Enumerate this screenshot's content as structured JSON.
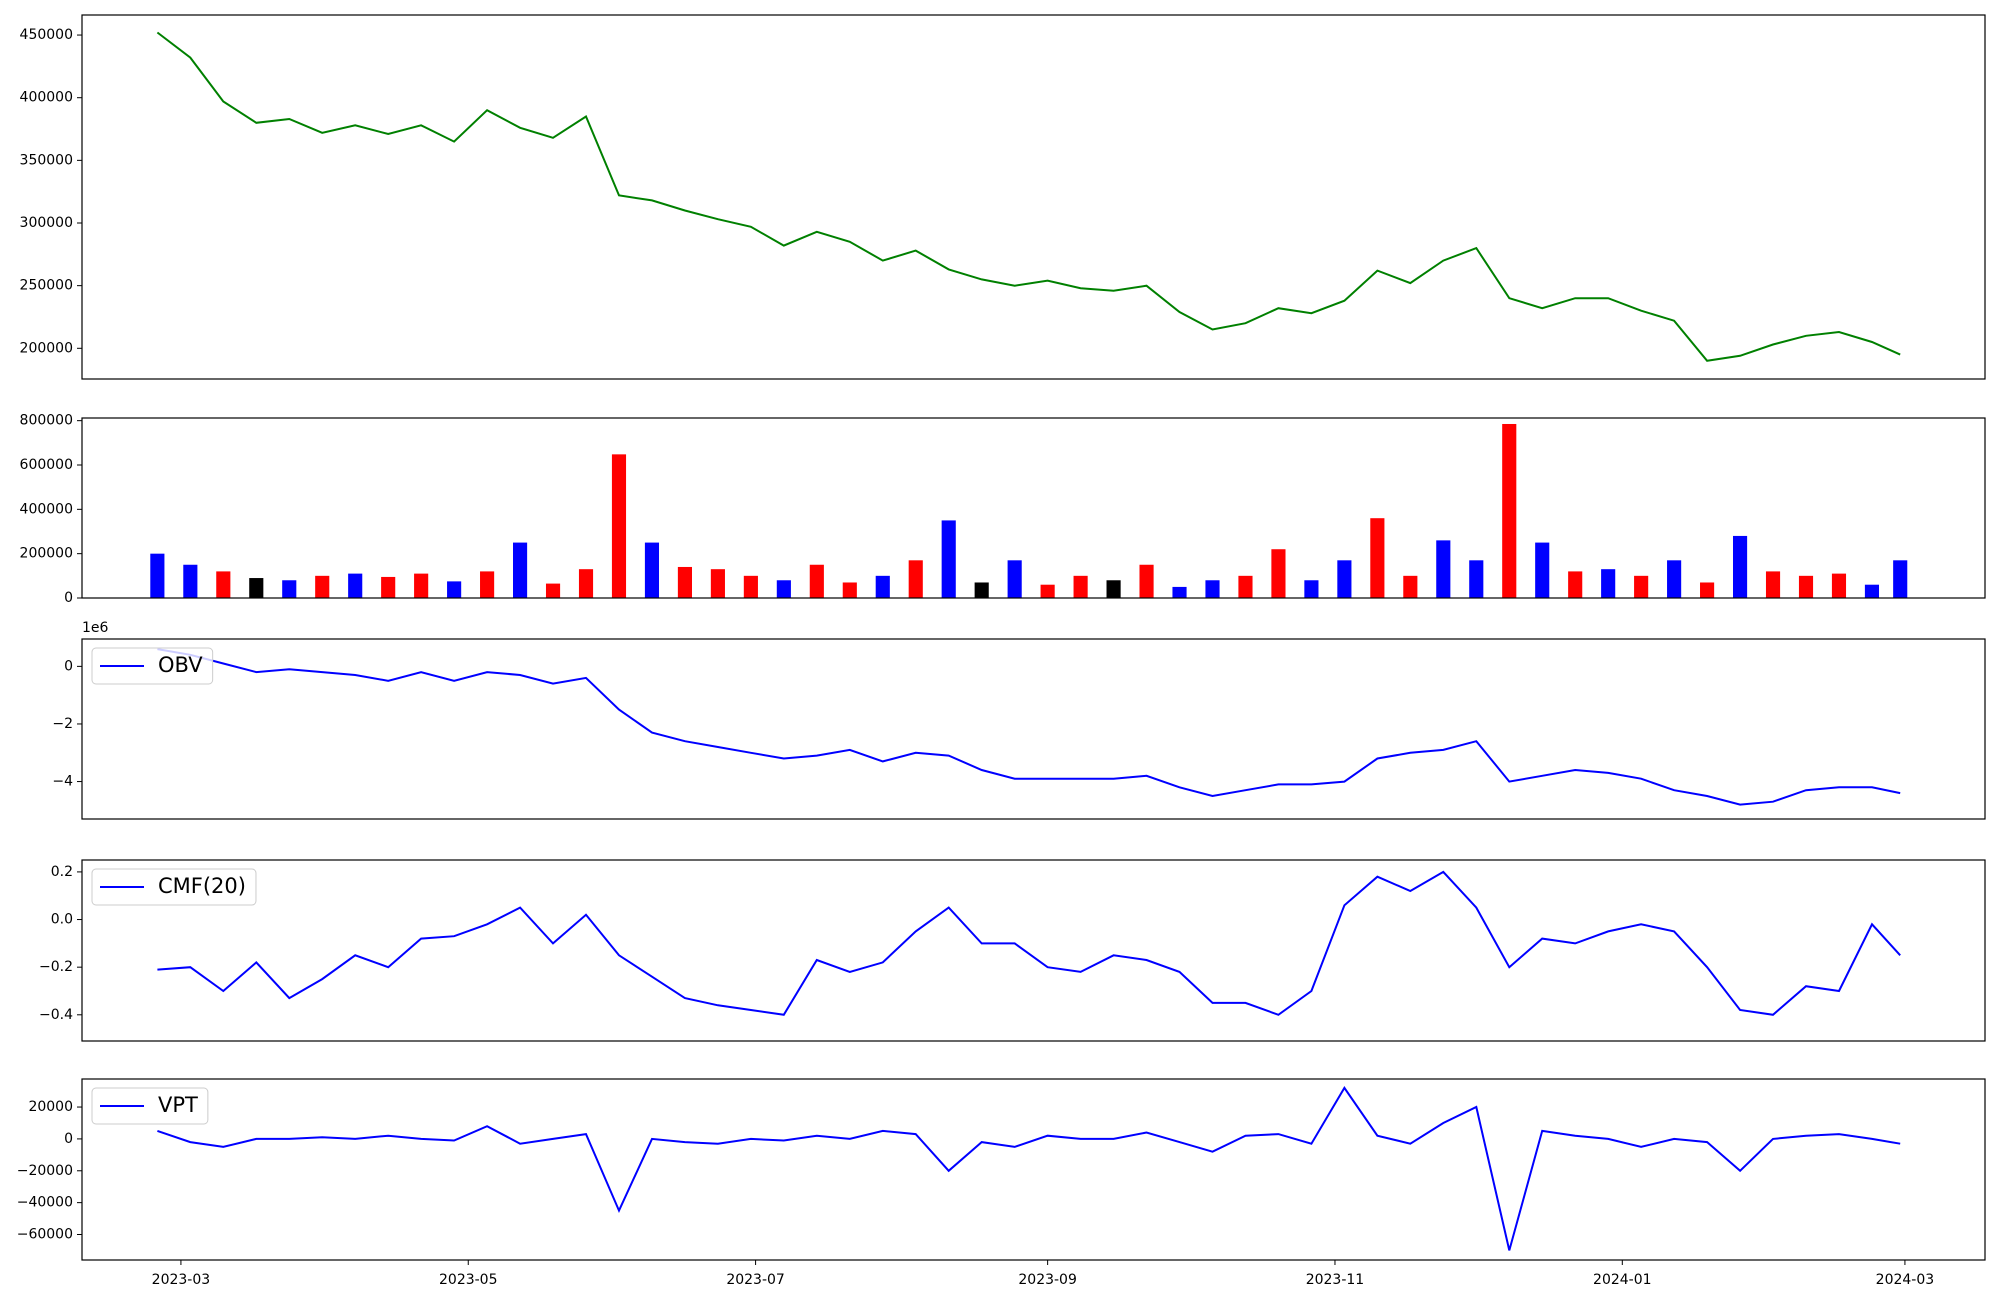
{
  "chart_data": [
    {
      "type": "line",
      "ylim": [
        175500,
        466000
      ],
      "yticks": [
        200000,
        250000,
        300000,
        350000,
        400000,
        450000
      ],
      "xlim": [
        "2023-02-08",
        "2024-03-18"
      ],
      "x": [
        "2023-02-24",
        "2023-03-03",
        "2023-03-10",
        "2023-03-17",
        "2023-03-24",
        "2023-03-31",
        "2023-04-07",
        "2023-04-14",
        "2023-04-21",
        "2023-04-28",
        "2023-05-05",
        "2023-05-12",
        "2023-05-19",
        "2023-05-26",
        "2023-06-02",
        "2023-06-09",
        "2023-06-16",
        "2023-06-23",
        "2023-06-30",
        "2023-07-07",
        "2023-07-14",
        "2023-07-21",
        "2023-07-28",
        "2023-08-04",
        "2023-08-11",
        "2023-08-18",
        "2023-08-25",
        "2023-09-01",
        "2023-09-08",
        "2023-09-15",
        "2023-09-22",
        "2023-09-29",
        "2023-10-06",
        "2023-10-13",
        "2023-10-20",
        "2023-10-27",
        "2023-11-03",
        "2023-11-10",
        "2023-11-17",
        "2023-11-24",
        "2023-12-01",
        "2023-12-08",
        "2023-12-15",
        "2023-12-22",
        "2023-12-29",
        "2024-01-05",
        "2024-01-12",
        "2024-01-19",
        "2024-01-26",
        "2024-02-02",
        "2024-02-09",
        "2024-02-16",
        "2024-02-23",
        "2024-02-29"
      ],
      "series": [
        {
          "color": "#008000",
          "values": [
            452000,
            432000,
            397000,
            380000,
            383000,
            372000,
            378000,
            371000,
            378000,
            365000,
            390000,
            376000,
            368000,
            385000,
            322000,
            318000,
            310000,
            303000,
            297000,
            282000,
            293000,
            285000,
            270000,
            278000,
            263000,
            255000,
            250000,
            254000,
            248000,
            246000,
            250000,
            229000,
            215000,
            220000,
            232000,
            228000,
            238000,
            262000,
            252000,
            270000,
            280000,
            240000,
            232000,
            240000,
            240000,
            230000,
            222000,
            190000,
            194000,
            203000,
            210000,
            213000,
            205000,
            195000
          ]
        }
      ]
    },
    {
      "type": "bar",
      "ylim": [
        0,
        812000
      ],
      "yticks": [
        0,
        200000,
        400000,
        600000,
        800000
      ],
      "xlim": [
        "2023-02-08",
        "2024-03-18"
      ],
      "x": [
        "2023-02-24",
        "2023-03-03",
        "2023-03-10",
        "2023-03-17",
        "2023-03-24",
        "2023-03-31",
        "2023-04-07",
        "2023-04-14",
        "2023-04-21",
        "2023-04-28",
        "2023-05-05",
        "2023-05-12",
        "2023-05-19",
        "2023-05-26",
        "2023-06-02",
        "2023-06-09",
        "2023-06-16",
        "2023-06-23",
        "2023-06-30",
        "2023-07-07",
        "2023-07-14",
        "2023-07-21",
        "2023-07-28",
        "2023-08-04",
        "2023-08-11",
        "2023-08-18",
        "2023-08-25",
        "2023-09-01",
        "2023-09-08",
        "2023-09-15",
        "2023-09-22",
        "2023-09-29",
        "2023-10-06",
        "2023-10-13",
        "2023-10-20",
        "2023-10-27",
        "2023-11-03",
        "2023-11-10",
        "2023-11-17",
        "2023-11-24",
        "2023-12-01",
        "2023-12-08",
        "2023-12-15",
        "2023-12-22",
        "2023-12-29",
        "2024-01-05",
        "2024-01-12",
        "2024-01-19",
        "2024-01-26",
        "2024-02-02",
        "2024-02-09",
        "2024-02-16",
        "2024-02-23",
        "2024-02-29"
      ],
      "series": [
        {
          "values": [
            200000,
            150000,
            120000,
            90000,
            80000,
            100000,
            110000,
            95000,
            110000,
            75000,
            120000,
            250000,
            65000,
            130000,
            648000,
            250000,
            140000,
            130000,
            100000,
            80000,
            150000,
            70000,
            100000,
            170000,
            350000,
            70000,
            170000,
            60000,
            100000,
            80000,
            150000,
            50000,
            80000,
            100000,
            220000,
            80000,
            170000,
            360000,
            100000,
            260000,
            170000,
            785000,
            250000,
            120000,
            130000,
            100000,
            170000,
            70000,
            280000,
            120000,
            100000,
            110000,
            60000,
            170000
          ],
          "colors": [
            "blue",
            "blue",
            "red",
            "black",
            "blue",
            "red",
            "blue",
            "red",
            "red",
            "blue",
            "red",
            "blue",
            "red",
            "red",
            "red",
            "blue",
            "red",
            "red",
            "red",
            "blue",
            "red",
            "red",
            "blue",
            "red",
            "blue",
            "black",
            "blue",
            "red",
            "red",
            "black",
            "red",
            "blue",
            "blue",
            "red",
            "red",
            "blue",
            "blue",
            "red",
            "red",
            "blue",
            "blue",
            "red",
            "blue",
            "red",
            "blue",
            "red",
            "blue",
            "red",
            "blue",
            "red",
            "red",
            "red",
            "blue",
            "blue"
          ]
        }
      ]
    },
    {
      "type": "line",
      "offset_label": "1e6",
      "legend": "upper left",
      "ylim": [
        -5.3,
        0.95
      ],
      "yticks": [
        {
          "value": -4,
          "label": "−4"
        },
        {
          "value": -2,
          "label": "−2"
        },
        0
      ],
      "xlim": [
        "2023-02-08",
        "2024-03-18"
      ],
      "x": [
        "2023-02-24",
        "2023-03-03",
        "2023-03-10",
        "2023-03-17",
        "2023-03-24",
        "2023-03-31",
        "2023-04-07",
        "2023-04-14",
        "2023-04-21",
        "2023-04-28",
        "2023-05-05",
        "2023-05-12",
        "2023-05-19",
        "2023-05-26",
        "2023-06-02",
        "2023-06-09",
        "2023-06-16",
        "2023-06-23",
        "2023-06-30",
        "2023-07-07",
        "2023-07-14",
        "2023-07-21",
        "2023-07-28",
        "2023-08-04",
        "2023-08-11",
        "2023-08-18",
        "2023-08-25",
        "2023-09-01",
        "2023-09-08",
        "2023-09-15",
        "2023-09-22",
        "2023-09-29",
        "2023-10-06",
        "2023-10-13",
        "2023-10-20",
        "2023-10-27",
        "2023-11-03",
        "2023-11-10",
        "2023-11-17",
        "2023-11-24",
        "2023-12-01",
        "2023-12-08",
        "2023-12-15",
        "2023-12-22",
        "2023-12-29",
        "2024-01-05",
        "2024-01-12",
        "2024-01-19",
        "2024-01-26",
        "2024-02-02",
        "2024-02-09",
        "2024-02-16",
        "2024-02-23",
        "2024-02-29"
      ],
      "series": [
        {
          "name": "OBV",
          "color": "#0000ff",
          "values": [
            0.6,
            0.4,
            0.1,
            -0.2,
            -0.1,
            -0.2,
            -0.3,
            -0.5,
            -0.2,
            -0.5,
            -0.2,
            -0.3,
            -0.6,
            -0.4,
            -1.5,
            -2.3,
            -2.6,
            -2.8,
            -3.0,
            -3.2,
            -3.1,
            -2.9,
            -3.3,
            -3.0,
            -3.1,
            -3.6,
            -3.9,
            -3.9,
            -3.9,
            -3.9,
            -3.8,
            -4.2,
            -4.5,
            -4.3,
            -4.1,
            -4.1,
            -4.0,
            -3.2,
            -3.0,
            -2.9,
            -2.6,
            -4.0,
            -3.8,
            -3.6,
            -3.7,
            -3.9,
            -4.3,
            -4.5,
            -4.8,
            -4.7,
            -4.3,
            -4.2,
            -4.2,
            -4.4
          ]
        }
      ]
    },
    {
      "type": "line",
      "legend": "upper left",
      "ylim": [
        -0.51,
        0.25
      ],
      "yticks": [
        {
          "value": -0.4,
          "label": "−0.4"
        },
        {
          "value": -0.2,
          "label": "−0.2"
        },
        {
          "value": 0,
          "label": "0.0"
        },
        0.2
      ],
      "xlim": [
        "2023-02-08",
        "2024-03-18"
      ],
      "x": [
        "2023-02-24",
        "2023-03-03",
        "2023-03-10",
        "2023-03-17",
        "2023-03-24",
        "2023-03-31",
        "2023-04-07",
        "2023-04-14",
        "2023-04-21",
        "2023-04-28",
        "2023-05-05",
        "2023-05-12",
        "2023-05-19",
        "2023-05-26",
        "2023-06-02",
        "2023-06-09",
        "2023-06-16",
        "2023-06-23",
        "2023-06-30",
        "2023-07-07",
        "2023-07-14",
        "2023-07-21",
        "2023-07-28",
        "2023-08-04",
        "2023-08-11",
        "2023-08-18",
        "2023-08-25",
        "2023-09-01",
        "2023-09-08",
        "2023-09-15",
        "2023-09-22",
        "2023-09-29",
        "2023-10-06",
        "2023-10-13",
        "2023-10-20",
        "2023-10-27",
        "2023-11-03",
        "2023-11-10",
        "2023-11-17",
        "2023-11-24",
        "2023-12-01",
        "2023-12-08",
        "2023-12-15",
        "2023-12-22",
        "2023-12-29",
        "2024-01-05",
        "2024-01-12",
        "2024-01-19",
        "2024-01-26",
        "2024-02-02",
        "2024-02-09",
        "2024-02-16",
        "2024-02-23",
        "2024-02-29"
      ],
      "series": [
        {
          "name": "CMF(20)",
          "color": "#0000ff",
          "values": [
            -0.21,
            -0.2,
            -0.3,
            -0.18,
            -0.33,
            -0.25,
            -0.15,
            -0.2,
            -0.08,
            -0.07,
            -0.02,
            0.05,
            -0.1,
            0.02,
            -0.15,
            -0.24,
            -0.33,
            -0.36,
            -0.38,
            -0.4,
            -0.17,
            -0.22,
            -0.18,
            -0.05,
            0.05,
            -0.1,
            -0.1,
            -0.2,
            -0.22,
            -0.15,
            -0.17,
            -0.22,
            -0.35,
            -0.35,
            -0.4,
            -0.3,
            0.06,
            0.18,
            0.12,
            0.2,
            0.05,
            -0.2,
            -0.08,
            -0.1,
            -0.05,
            -0.02,
            -0.05,
            -0.2,
            -0.38,
            -0.4,
            -0.28,
            -0.3,
            -0.02,
            -0.15
          ]
        }
      ]
    },
    {
      "type": "line",
      "legend": "upper left",
      "ylim": [
        -76000,
        37600
      ],
      "yticks": [
        {
          "value": -60000,
          "label": "−60000"
        },
        {
          "value": -40000,
          "label": "−40000"
        },
        {
          "value": -20000,
          "label": "−20000"
        },
        0,
        20000
      ],
      "xlim": [
        "2023-02-08",
        "2024-03-18"
      ],
      "xticks": [
        "2023-03",
        "2023-05",
        "2023-07",
        "2023-09",
        "2023-11",
        "2024-01",
        "2024-03"
      ],
      "x": [
        "2023-02-24",
        "2023-03-03",
        "2023-03-10",
        "2023-03-17",
        "2023-03-24",
        "2023-03-31",
        "2023-04-07",
        "2023-04-14",
        "2023-04-21",
        "2023-04-28",
        "2023-05-05",
        "2023-05-12",
        "2023-05-19",
        "2023-05-26",
        "2023-06-02",
        "2023-06-09",
        "2023-06-16",
        "2023-06-23",
        "2023-06-30",
        "2023-07-07",
        "2023-07-14",
        "2023-07-21",
        "2023-07-28",
        "2023-08-04",
        "2023-08-11",
        "2023-08-18",
        "2023-08-25",
        "2023-09-01",
        "2023-09-08",
        "2023-09-15",
        "2023-09-22",
        "2023-09-29",
        "2023-10-06",
        "2023-10-13",
        "2023-10-20",
        "2023-10-27",
        "2023-11-03",
        "2023-11-10",
        "2023-11-17",
        "2023-11-24",
        "2023-12-01",
        "2023-12-08",
        "2023-12-15",
        "2023-12-22",
        "2023-12-29",
        "2024-01-05",
        "2024-01-12",
        "2024-01-19",
        "2024-01-26",
        "2024-02-02",
        "2024-02-09",
        "2024-02-16",
        "2024-02-23",
        "2024-02-29"
      ],
      "series": [
        {
          "name": "VPT",
          "color": "#0000ff",
          "values": [
            5000,
            -2000,
            -5000,
            0,
            0,
            1000,
            0,
            2000,
            0,
            -1000,
            8000,
            -3000,
            0,
            3000,
            -45000,
            0,
            -2000,
            -3000,
            0,
            -1000,
            2000,
            0,
            5000,
            3000,
            -20000,
            -2000,
            -5000,
            2000,
            0,
            0,
            4000,
            -2000,
            -8000,
            2000,
            3000,
            -3000,
            32000,
            2000,
            -3000,
            10000,
            20000,
            -70000,
            5000,
            2000,
            0,
            -5000,
            0,
            -2000,
            -20000,
            0,
            2000,
            3000,
            0,
            -3000
          ]
        }
      ]
    }
  ]
}
